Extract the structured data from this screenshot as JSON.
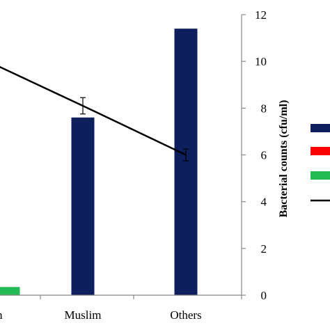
{
  "chart_data": {
    "type": "bar",
    "categories": [
      "m",
      "Muslim",
      "Others"
    ],
    "y2label": "Bacterial counts (cfu/ml)",
    "y2lim": [
      0,
      12
    ],
    "y2ticks": [
      "0",
      "2",
      "4",
      "6",
      "8",
      "10",
      "12"
    ],
    "grid": false,
    "legend": "right",
    "series": [
      {
        "kind": "bar",
        "color": "#0d1f5c",
        "values": [
          null,
          7.6,
          11.4
        ]
      },
      {
        "kind": "bar",
        "color": "#ff0000",
        "values": [
          null,
          null,
          null
        ]
      },
      {
        "kind": "bar",
        "color": "#22bb55",
        "values": [
          0.35,
          null,
          null
        ]
      },
      {
        "kind": "line",
        "color": "#000000",
        "values": [
          9.8,
          8.1,
          6.0
        ],
        "error": [
          null,
          0.35,
          0.25
        ]
      }
    ]
  }
}
